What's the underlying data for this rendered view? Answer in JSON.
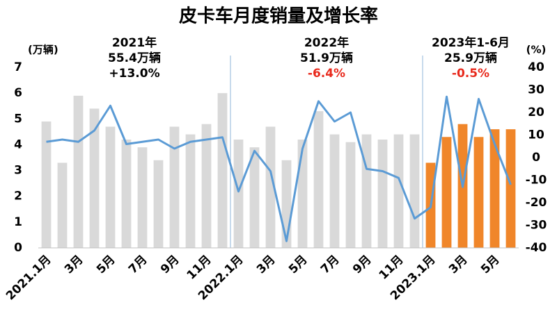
{
  "chart_data": {
    "type": "bar-line",
    "title": "皮卡车月度销量及增长率",
    "y_label": "(万辆)",
    "y2_label": "(%)",
    "categories": [
      "2021.1月",
      null,
      "3月",
      null,
      "5月",
      null,
      "7月",
      null,
      "9月",
      null,
      "11月",
      null,
      "2022.1月",
      null,
      "3月",
      null,
      "5月",
      null,
      "7月",
      null,
      "9月",
      null,
      "11月",
      null,
      "2023.1月",
      null,
      "3月",
      null,
      "5月",
      null
    ],
    "series": [
      {
        "type": "bar",
        "axis": "y",
        "values": [
          4.9,
          3.3,
          5.9,
          5.4,
          4.7,
          4.2,
          3.9,
          3.4,
          4.7,
          4.4,
          4.8,
          6.0,
          4.2,
          3.9,
          4.7,
          3.4,
          4.2,
          5.3,
          4.4,
          4.1,
          4.4,
          4.2,
          4.4,
          4.4,
          3.3,
          4.3,
          4.8,
          4.3,
          4.6,
          4.6
        ],
        "colors": [
          "#d9d9d9",
          "#d9d9d9",
          "#d9d9d9",
          "#d9d9d9",
          "#d9d9d9",
          "#d9d9d9",
          "#d9d9d9",
          "#d9d9d9",
          "#d9d9d9",
          "#d9d9d9",
          "#d9d9d9",
          "#d9d9d9",
          "#d9d9d9",
          "#d9d9d9",
          "#d9d9d9",
          "#d9d9d9",
          "#d9d9d9",
          "#d9d9d9",
          "#d9d9d9",
          "#d9d9d9",
          "#d9d9d9",
          "#d9d9d9",
          "#d9d9d9",
          "#d9d9d9",
          "#f0862a",
          "#f0862a",
          "#f0862a",
          "#f0862a",
          "#f0862a",
          "#f0862a"
        ]
      },
      {
        "type": "line",
        "axis": "y2",
        "color": "#5b9bd5",
        "values": [
          7,
          8,
          7,
          12,
          23,
          6,
          7,
          8,
          4,
          7,
          8,
          9,
          -15,
          3,
          -6,
          -37,
          4,
          25,
          16,
          20,
          -5,
          -6,
          -9,
          -27,
          -22,
          27,
          -13,
          26,
          6,
          -12
        ]
      }
    ],
    "ylim": [
      0,
      7
    ],
    "yticks": [
      0,
      1,
      2,
      3,
      4,
      5,
      6,
      7
    ],
    "y2lim": [
      -40,
      40
    ],
    "y2ticks": [
      -40,
      -30,
      -20,
      -10,
      0,
      10,
      20,
      30,
      40
    ],
    "annotations": [
      {
        "lines": [
          "2021年",
          "55.4万辆",
          "+13.0%"
        ],
        "colors": [
          "#000000",
          "#000000",
          "#000000"
        ]
      },
      {
        "lines": [
          "2022年",
          "51.9万辆",
          "-6.4%"
        ],
        "colors": [
          "#000000",
          "#000000",
          "#e8291c"
        ]
      },
      {
        "lines": [
          "2023年1-6月",
          "25.9万辆",
          "-0.5%"
        ],
        "colors": [
          "#000000",
          "#000000",
          "#e8291c"
        ]
      }
    ]
  }
}
